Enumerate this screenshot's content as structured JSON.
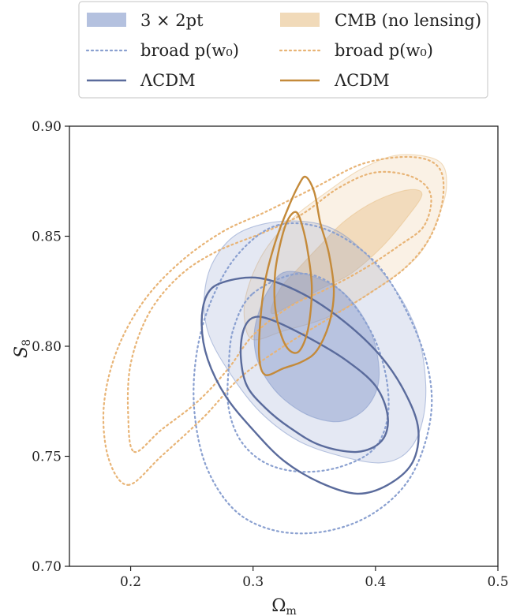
{
  "colors": {
    "blue": "#8297c9",
    "blue_line": "#5a6b9c",
    "blue_dotted": "#8aa0d0",
    "orange": "#e8c18a",
    "orange_line": "#c48a3a",
    "orange_dotted": "#e8b476"
  },
  "legend": {
    "placement": "top",
    "entries": [
      {
        "label": "3 × 2pt",
        "style": "filled",
        "color": "blue"
      },
      {
        "label": "CMB (no lensing)",
        "style": "filled",
        "color": "orange"
      },
      {
        "label": "broad p(w₀)",
        "style": "dotted",
        "color": "blue"
      },
      {
        "label": "broad p(w₀)",
        "style": "dotted",
        "color": "orange"
      },
      {
        "label": "ΛCDM",
        "style": "solid",
        "color": "blue"
      },
      {
        "label": "ΛCDM",
        "style": "solid",
        "color": "orange"
      }
    ]
  },
  "chart_data": {
    "type": "contour",
    "xlabel": "Ωm",
    "ylabel": "S8",
    "xlim": [
      0.15,
      0.5
    ],
    "ylim": [
      0.7,
      0.9
    ],
    "xticks": [
      "0.2",
      "0.3",
      "0.4",
      "0.5"
    ],
    "yticks": [
      "0.70",
      "0.75",
      "0.80",
      "0.85",
      "0.90"
    ],
    "grid": false,
    "series": [
      {
        "name": "3 × 2pt",
        "style": "filled",
        "color": "blue",
        "levels": [
          {
            "level": "68%",
            "points": [
              [
                0.33,
                0.834
              ],
              [
                0.37,
                0.826
              ],
              [
                0.395,
                0.808
              ],
              [
                0.403,
                0.787
              ],
              [
                0.394,
                0.773
              ],
              [
                0.373,
                0.766
              ],
              [
                0.348,
                0.768
              ],
              [
                0.325,
                0.776
              ],
              [
                0.31,
                0.786
              ],
              [
                0.302,
                0.797
              ],
              [
                0.302,
                0.81
              ],
              [
                0.313,
                0.826
              ]
            ]
          },
          {
            "level": "95%",
            "points": [
              [
                0.33,
                0.857
              ],
              [
                0.37,
                0.852
              ],
              [
                0.408,
                0.832
              ],
              [
                0.433,
                0.808
              ],
              [
                0.441,
                0.783
              ],
              [
                0.437,
                0.763
              ],
              [
                0.424,
                0.751
              ],
              [
                0.403,
                0.747
              ],
              [
                0.372,
                0.75
              ],
              [
                0.337,
                0.757
              ],
              [
                0.306,
                0.77
              ],
              [
                0.282,
                0.787
              ],
              [
                0.264,
                0.805
              ],
              [
                0.26,
                0.822
              ],
              [
                0.268,
                0.839
              ],
              [
                0.29,
                0.852
              ]
            ]
          }
        ]
      },
      {
        "name": "CMB (no lensing)",
        "style": "filled",
        "color": "orange",
        "levels": [
          {
            "level": "68%",
            "points": [
              [
                0.315,
                0.815
              ],
              [
                0.335,
                0.82
              ],
              [
                0.355,
                0.826
              ],
              [
                0.38,
                0.833
              ],
              [
                0.405,
                0.845
              ],
              [
                0.425,
                0.858
              ],
              [
                0.438,
                0.869
              ],
              [
                0.426,
                0.871
              ],
              [
                0.4,
                0.866
              ],
              [
                0.375,
                0.857
              ],
              [
                0.355,
                0.846
              ],
              [
                0.338,
                0.836
              ],
              [
                0.322,
                0.826
              ]
            ]
          },
          {
            "level": "95%",
            "points": [
              [
                0.3,
                0.803
              ],
              [
                0.325,
                0.807
              ],
              [
                0.36,
                0.813
              ],
              [
                0.395,
                0.824
              ],
              [
                0.425,
                0.836
              ],
              [
                0.44,
                0.845
              ],
              [
                0.45,
                0.857
              ],
              [
                0.458,
                0.872
              ],
              [
                0.452,
                0.884
              ],
              [
                0.42,
                0.887
              ],
              [
                0.39,
                0.881
              ],
              [
                0.36,
                0.87
              ],
              [
                0.33,
                0.857
              ],
              [
                0.308,
                0.842
              ],
              [
                0.295,
                0.825
              ],
              [
                0.293,
                0.812
              ]
            ]
          }
        ]
      },
      {
        "name": "broad p(w₀)",
        "style": "dotted",
        "color": "blue",
        "levels": [
          {
            "level": "68%",
            "points": [
              [
                0.3,
                0.824
              ],
              [
                0.338,
                0.833
              ],
              [
                0.37,
                0.826
              ],
              [
                0.395,
                0.808
              ],
              [
                0.408,
                0.788
              ],
              [
                0.41,
                0.768
              ],
              [
                0.398,
                0.753
              ],
              [
                0.37,
                0.745
              ],
              [
                0.338,
                0.743
              ],
              [
                0.31,
                0.747
              ],
              [
                0.29,
                0.757
              ],
              [
                0.28,
                0.772
              ],
              [
                0.28,
                0.79
              ],
              [
                0.284,
                0.808
              ]
            ]
          },
          {
            "level": "95%",
            "points": [
              [
                0.32,
                0.855
              ],
              [
                0.36,
                0.853
              ],
              [
                0.4,
                0.838
              ],
              [
                0.428,
                0.813
              ],
              [
                0.444,
                0.787
              ],
              [
                0.444,
                0.764
              ],
              [
                0.428,
                0.74
              ],
              [
                0.398,
                0.724
              ],
              [
                0.36,
                0.716
              ],
              [
                0.32,
                0.716
              ],
              [
                0.286,
                0.725
              ],
              [
                0.262,
                0.745
              ],
              [
                0.252,
                0.771
              ],
              [
                0.254,
                0.797
              ],
              [
                0.266,
                0.821
              ],
              [
                0.288,
                0.842
              ]
            ]
          }
        ]
      },
      {
        "name": "broad p(w₀)",
        "style": "dotted",
        "color": "orange",
        "levels": [
          {
            "level": "68%",
            "points": [
              [
                0.203,
                0.752
              ],
              [
                0.225,
                0.762
              ],
              [
                0.255,
                0.775
              ],
              [
                0.28,
                0.79
              ],
              [
                0.3,
                0.805
              ],
              [
                0.33,
                0.818
              ],
              [
                0.36,
                0.826
              ],
              [
                0.39,
                0.835
              ],
              [
                0.42,
                0.846
              ],
              [
                0.44,
                0.855
              ],
              [
                0.445,
                0.869
              ],
              [
                0.43,
                0.877
              ],
              [
                0.4,
                0.879
              ],
              [
                0.37,
                0.872
              ],
              [
                0.34,
                0.86
              ],
              [
                0.31,
                0.852
              ],
              [
                0.27,
                0.843
              ],
              [
                0.24,
                0.832
              ],
              [
                0.215,
                0.815
              ],
              [
                0.2,
                0.792
              ],
              [
                0.198,
                0.768
              ]
            ]
          },
          {
            "level": "95%",
            "points": [
              [
                0.198,
                0.737
              ],
              [
                0.225,
                0.75
              ],
              [
                0.26,
                0.768
              ],
              [
                0.29,
                0.786
              ],
              [
                0.325,
                0.8
              ],
              [
                0.36,
                0.812
              ],
              [
                0.395,
                0.824
              ],
              [
                0.425,
                0.836
              ],
              [
                0.445,
                0.85
              ],
              [
                0.455,
                0.867
              ],
              [
                0.452,
                0.881
              ],
              [
                0.43,
                0.886
              ],
              [
                0.39,
                0.883
              ],
              [
                0.35,
                0.872
              ],
              [
                0.31,
                0.861
              ],
              [
                0.275,
                0.852
              ],
              [
                0.24,
                0.838
              ],
              [
                0.21,
                0.82
              ],
              [
                0.188,
                0.797
              ],
              [
                0.178,
                0.772
              ],
              [
                0.182,
                0.749
              ]
            ]
          }
        ]
      },
      {
        "name": "ΛCDM",
        "style": "solid",
        "color": "blue",
        "levels": [
          {
            "level": "68%",
            "points": [
              [
                0.3,
                0.813
              ],
              [
                0.315,
                0.812
              ],
              [
                0.345,
                0.804
              ],
              [
                0.375,
                0.794
              ],
              [
                0.4,
                0.782
              ],
              [
                0.41,
                0.768
              ],
              [
                0.405,
                0.757
              ],
              [
                0.385,
                0.752
              ],
              [
                0.355,
                0.755
              ],
              [
                0.33,
                0.763
              ],
              [
                0.31,
                0.772
              ],
              [
                0.295,
                0.782
              ],
              [
                0.29,
                0.795
              ],
              [
                0.292,
                0.807
              ]
            ]
          },
          {
            "level": "95%",
            "points": [
              [
                0.275,
                0.829
              ],
              [
                0.305,
                0.831
              ],
              [
                0.34,
                0.824
              ],
              [
                0.375,
                0.811
              ],
              [
                0.405,
                0.795
              ],
              [
                0.425,
                0.778
              ],
              [
                0.435,
                0.762
              ],
              [
                0.43,
                0.747
              ],
              [
                0.41,
                0.737
              ],
              [
                0.385,
                0.733
              ],
              [
                0.355,
                0.738
              ],
              [
                0.325,
                0.748
              ],
              [
                0.3,
                0.762
              ],
              [
                0.278,
                0.777
              ],
              [
                0.263,
                0.794
              ],
              [
                0.258,
                0.81
              ],
              [
                0.262,
                0.823
              ]
            ]
          }
        ]
      },
      {
        "name": "ΛCDM",
        "style": "solid",
        "color": "orange",
        "levels": [
          {
            "level": "68%",
            "points": [
              [
                0.335,
                0.861
              ],
              [
                0.34,
                0.855
              ],
              [
                0.345,
                0.842
              ],
              [
                0.348,
                0.826
              ],
              [
                0.345,
                0.808
              ],
              [
                0.338,
                0.798
              ],
              [
                0.33,
                0.798
              ],
              [
                0.323,
                0.805
              ],
              [
                0.318,
                0.818
              ],
              [
                0.318,
                0.833
              ],
              [
                0.322,
                0.846
              ],
              [
                0.328,
                0.857
              ]
            ]
          },
          {
            "level": "95%",
            "points": [
              [
                0.343,
                0.877
              ],
              [
                0.35,
                0.87
              ],
              [
                0.355,
                0.856
              ],
              [
                0.362,
                0.842
              ],
              [
                0.366,
                0.825
              ],
              [
                0.362,
                0.81
              ],
              [
                0.352,
                0.798
              ],
              [
                0.34,
                0.793
              ],
              [
                0.325,
                0.79
              ],
              [
                0.31,
                0.787
              ],
              [
                0.305,
                0.795
              ],
              [
                0.306,
                0.812
              ],
              [
                0.31,
                0.83
              ],
              [
                0.318,
                0.847
              ],
              [
                0.328,
                0.862
              ],
              [
                0.337,
                0.873
              ]
            ]
          }
        ]
      }
    ]
  }
}
